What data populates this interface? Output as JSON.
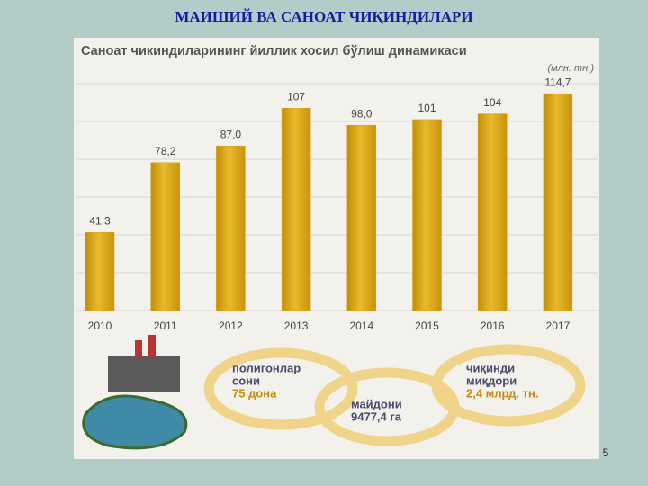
{
  "slide_title": "МАИШИЙ ВА САНОАТ ЧИҚИНДИЛАРИ",
  "page_number": "5",
  "chart_data": {
    "type": "bar",
    "title": "Саноат чикиндиларининг йиллик хосил бўлиш динамикаси",
    "unit": "(млн. тн.)",
    "categories": [
      "2010",
      "2011",
      "2012",
      "2013",
      "2014",
      "2015",
      "2016",
      "2017"
    ],
    "values": [
      41.3,
      78.2,
      87.0,
      107,
      98.0,
      101,
      104,
      114.7
    ],
    "value_labels": [
      "41,3",
      "78,2",
      "87,0",
      "107",
      "98,0",
      "101",
      "104",
      "114,7"
    ],
    "color": "#d9a514",
    "ylim": [
      0,
      120
    ],
    "yticks": [
      0,
      20,
      40,
      60,
      80,
      100,
      120
    ],
    "grid": true
  },
  "infographic": {
    "items": [
      {
        "lines": [
          "полигонлар",
          "сони"
        ],
        "highlight": "75 дона"
      },
      {
        "lines": [
          "майдони"
        ],
        "highlight": "9477,4 га"
      },
      {
        "lines": [
          "чиқинди",
          "миқдори"
        ],
        "highlight": "2,4 млрд. тн."
      }
    ]
  }
}
